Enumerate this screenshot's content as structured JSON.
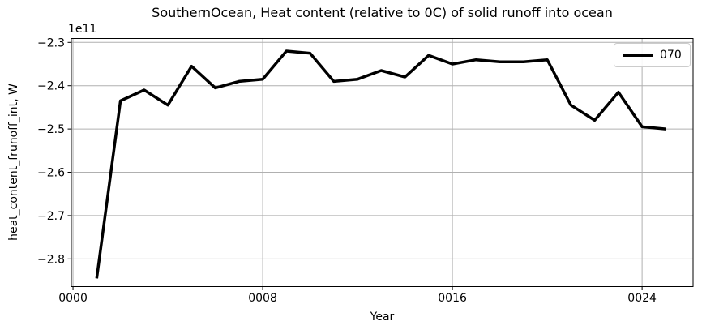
{
  "colors": {
    "background": "#ffffff",
    "grid": "#b0b0b0",
    "spine": "#000000",
    "text": "#000000",
    "legend_border": "#cccccc",
    "series": "#000000"
  },
  "chart_data": {
    "type": "line",
    "title": "SouthernOcean, Heat content (relative to 0C) of solid runoff into ocean",
    "xlabel": "Year",
    "ylabel": "heat_content_frunoff_int, W",
    "offset_text": "1e11",
    "unit_note": "y values are in units of 1e11 W",
    "xlim": [
      -0.07,
      26.15
    ],
    "ylim": [
      -2.864,
      -2.291
    ],
    "grid": true,
    "xticks": {
      "values": [
        0,
        8,
        16,
        24
      ],
      "labels": [
        "0000",
        "0008",
        "0016",
        "0024"
      ]
    },
    "yticks": {
      "values": [
        -2.3,
        -2.4,
        -2.5,
        -2.6,
        -2.7,
        -2.8
      ],
      "labels": [
        "−2.3",
        "−2.4",
        "−2.5",
        "−2.6",
        "−2.7",
        "−2.8"
      ]
    },
    "legend": {
      "position": "upper right",
      "entries": [
        {
          "label": "070",
          "color": "#000000",
          "linewidth": 3.5
        }
      ]
    },
    "series": [
      {
        "name": "070",
        "color": "#000000",
        "linewidth": 3.5,
        "x": [
          1,
          2,
          3,
          4,
          5,
          6,
          7,
          8,
          9,
          10,
          11,
          12,
          13,
          14,
          15,
          16,
          17,
          18,
          19,
          20,
          21,
          22,
          23,
          24,
          25
        ],
        "y": [
          -2.845,
          -2.435,
          -2.41,
          -2.445,
          -2.355,
          -2.405,
          -2.39,
          -2.385,
          -2.32,
          -2.325,
          -2.39,
          -2.385,
          -2.365,
          -2.38,
          -2.33,
          -2.35,
          -2.34,
          -2.345,
          -2.345,
          -2.34,
          -2.445,
          -2.48,
          -2.415,
          -2.495,
          -2.5
        ]
      }
    ]
  }
}
